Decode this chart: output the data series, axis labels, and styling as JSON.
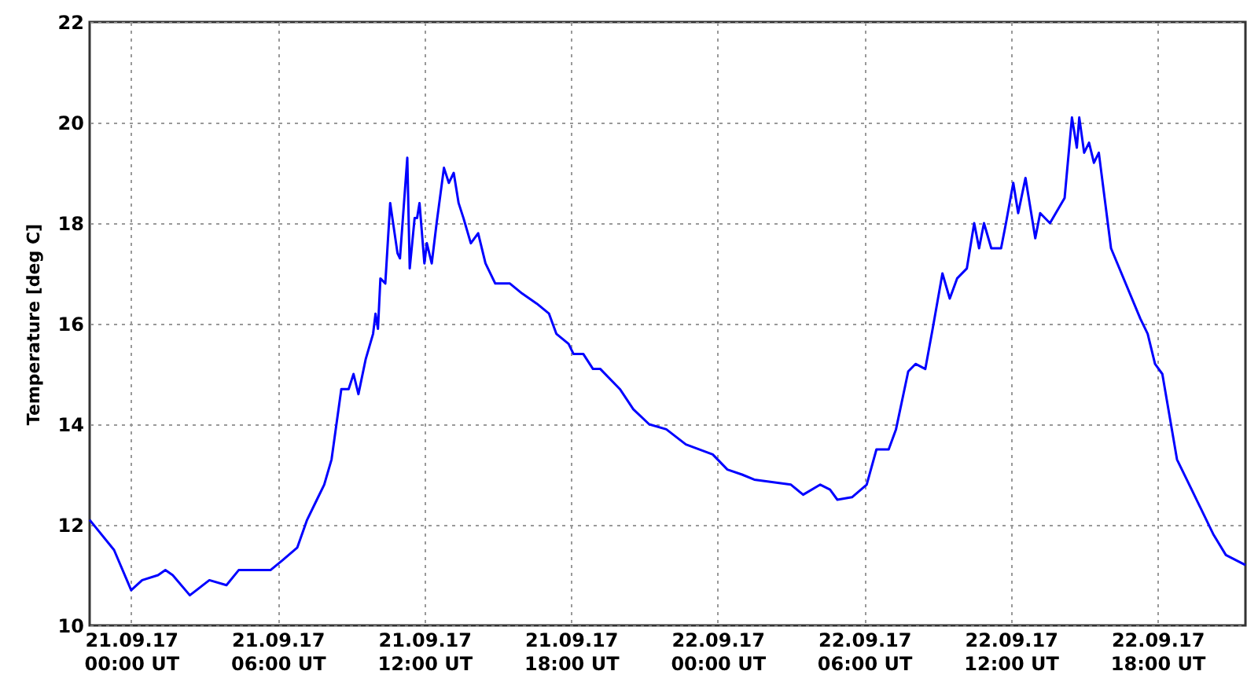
{
  "chart_data": {
    "type": "line",
    "ylabel": "Temperature [deg C]",
    "xlim": [
      "--09-20T22:18",
      "--09-22T21:36"
    ],
    "ylim": [
      10,
      22
    ],
    "yticks": [
      10,
      12,
      14,
      16,
      18,
      20,
      22
    ],
    "xticks": [
      {
        "value": "--09-21T00:00",
        "label": "21.09.17\n00:00 UT"
      },
      {
        "value": "--09-21T06:00",
        "label": "21.09.17\n06:00 UT"
      },
      {
        "value": "--09-21T12:00",
        "label": "21.09.17\n12:00 UT"
      },
      {
        "value": "--09-21T18:00",
        "label": "21.09.17\n18:00 UT"
      },
      {
        "value": "--09-22T00:00",
        "label": "22.09.17\n00:00 UT"
      },
      {
        "value": "--09-22T06:00",
        "label": "22.09.17\n06:00 UT"
      },
      {
        "value": "--09-22T12:00",
        "label": "22.09.17\n12:00 UT"
      },
      {
        "value": "--09-22T18:00",
        "label": "22.09.17\n18:00 UT"
      }
    ],
    "grid": true,
    "line_style": "solid",
    "x": [
      "--09-20T22:18",
      "--09-20T23:18",
      "--09-21T00:00",
      "--09-21T00:27",
      "--09-21T01:06",
      "--09-21T01:24",
      "--09-21T01:42",
      "--09-21T02:24",
      "--09-21T03:12",
      "--09-21T03:54",
      "--09-21T04:24",
      "--09-21T05:42",
      "--09-21T06:12",
      "--09-21T06:48",
      "--09-21T07:12",
      "--09-21T07:36",
      "--09-21T07:54",
      "--09-21T08:12",
      "--09-21T08:36",
      "--09-21T08:54",
      "--09-21T09:06",
      "--09-21T09:18",
      "--09-21T09:36",
      "--09-21T09:54",
      "--09-21T10:00",
      "--09-21T10:06",
      "--09-21T10:12",
      "--09-21T10:24",
      "--09-21T10:36",
      "--09-21T10:54",
      "--09-21T11:00",
      "--09-21T11:18",
      "--09-21T11:24",
      "--09-21T11:36",
      "--09-21T11:42",
      "--09-21T11:48",
      "--09-21T12:00",
      "--09-21T12:06",
      "--09-21T12:18",
      "--09-21T12:30",
      "--09-21T12:48",
      "--09-21T13:00",
      "--09-21T13:12",
      "--09-21T13:24",
      "--09-21T13:36",
      "--09-21T13:54",
      "--09-21T14:12",
      "--09-21T14:30",
      "--09-21T14:54",
      "--09-21T15:30",
      "--09-21T16:00",
      "--09-21T16:36",
      "--09-21T17:06",
      "--09-21T17:24",
      "--09-21T17:54",
      "--09-21T18:06",
      "--09-21T18:30",
      "--09-21T18:54",
      "--09-21T19:12",
      "--09-21T20:00",
      "--09-21T20:33",
      "--09-21T21:12",
      "--09-21T21:54",
      "--09-21T22:42",
      "--09-21T23:48",
      "--09-22T00:24",
      "--09-22T01:00",
      "--09-22T01:30",
      "--09-22T03:00",
      "--09-22T03:30",
      "--09-22T04:12",
      "--09-22T04:36",
      "--09-22T04:54",
      "--09-22T05:30",
      "--09-22T06:06",
      "--09-22T06:30",
      "--09-22T07:00",
      "--09-22T07:18",
      "--09-22T07:48",
      "--09-22T08:06",
      "--09-22T08:30",
      "--09-22T08:48",
      "--09-22T09:12",
      "--09-22T09:30",
      "--09-22T09:48",
      "--09-22T10:12",
      "--09-22T10:30",
      "--09-22T10:42",
      "--09-22T10:54",
      "--09-22T11:12",
      "--09-22T11:36",
      "--09-22T11:48",
      "--09-22T12:06",
      "--09-22T12:18",
      "--09-22T12:36",
      "--09-22T13:00",
      "--09-22T13:12",
      "--09-22T13:36",
      "--09-22T14:12",
      "--09-22T14:30",
      "--09-22T14:42",
      "--09-22T14:48",
      "--09-22T15:00",
      "--09-22T15:12",
      "--09-22T15:24",
      "--09-22T15:36",
      "--09-22T16:06",
      "--09-22T17:18",
      "--09-22T17:36",
      "--09-22T17:54",
      "--09-22T18:12",
      "--09-22T18:48",
      "--09-22T19:24",
      "--09-22T20:18",
      "--09-22T20:48",
      "--09-22T21:36"
    ],
    "series": [
      {
        "color": "#0000ff",
        "values": [
          12.1,
          11.5,
          10.7,
          10.9,
          11.0,
          11.1,
          11.0,
          10.6,
          10.9,
          10.8,
          11.1,
          11.1,
          11.3,
          11.55,
          12.1,
          12.5,
          12.8,
          13.3,
          14.7,
          14.7,
          15.0,
          14.6,
          15.3,
          15.8,
          16.2,
          15.9,
          16.9,
          16.8,
          18.4,
          17.4,
          17.3,
          19.3,
          17.1,
          18.1,
          18.1,
          18.4,
          17.2,
          17.6,
          17.2,
          18.0,
          19.1,
          18.8,
          19.0,
          18.4,
          18.1,
          17.6,
          17.8,
          17.2,
          16.8,
          16.8,
          16.6,
          16.4,
          16.2,
          15.8,
          15.6,
          15.4,
          15.4,
          15.1,
          15.1,
          14.7,
          14.3,
          14.0,
          13.9,
          13.6,
          13.4,
          13.1,
          13.0,
          12.9,
          12.8,
          12.6,
          12.8,
          12.7,
          12.5,
          12.55,
          12.8,
          13.5,
          13.5,
          13.9,
          15.05,
          15.2,
          15.1,
          15.9,
          17.0,
          16.5,
          16.9,
          17.1,
          18.0,
          17.5,
          18.0,
          17.5,
          17.5,
          18.0,
          18.8,
          18.2,
          18.9,
          17.7,
          18.2,
          18.0,
          18.5,
          20.1,
          19.5,
          20.1,
          19.4,
          19.6,
          19.2,
          19.4,
          17.5,
          16.1,
          15.8,
          15.2,
          15.0,
          13.3,
          12.7,
          11.8,
          11.4,
          11.2
        ]
      }
    ]
  }
}
